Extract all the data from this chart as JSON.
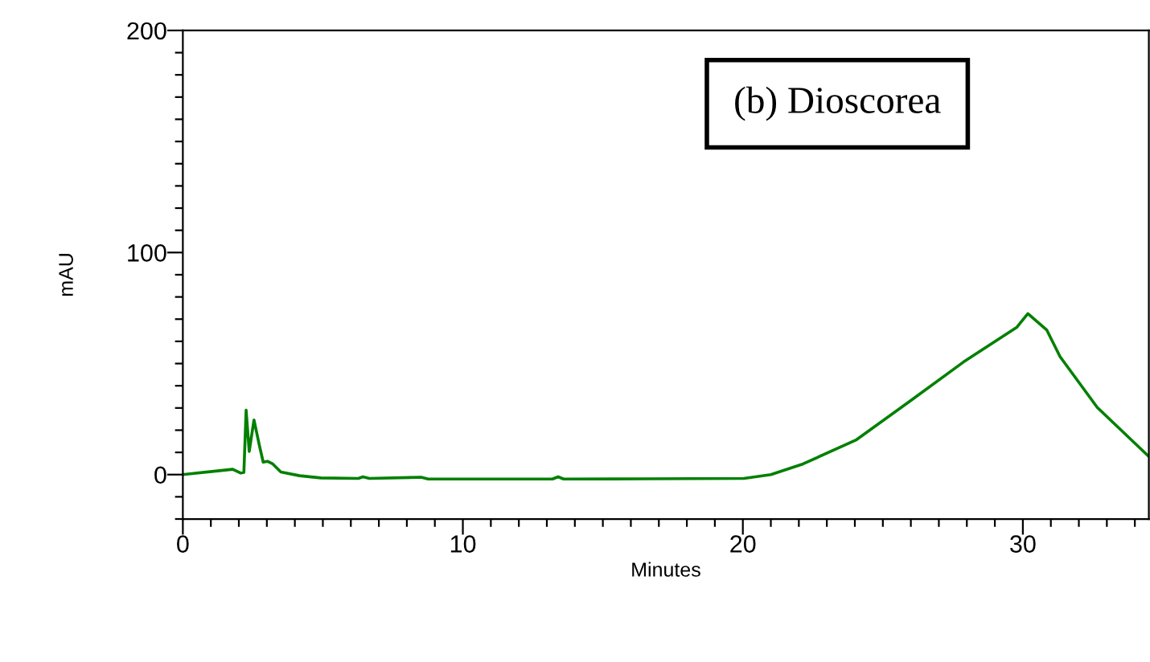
{
  "chart_data": {
    "type": "line",
    "xlabel": "Minutes",
    "ylabel": "mAU",
    "annotations": [
      "(b) Dioscorea"
    ],
    "series": [
      {
        "color": "#008000",
        "x": [
          0,
          1.78,
          2.07,
          2.18,
          2.26,
          2.37,
          2.54,
          2.73,
          2.87,
          3.02,
          3.21,
          3.5,
          4.17,
          4.93,
          6.27,
          6.43,
          6.66,
          8.51,
          8.76,
          13.2,
          13.4,
          13.6,
          16.4,
          20.04,
          21,
          22.15,
          24.06,
          25.97,
          27.88,
          29.79,
          30.18,
          30.85,
          31.33,
          32.66,
          34.47
        ],
        "values": [
          0,
          2.4,
          0.7,
          1,
          29,
          10.4,
          24.6,
          13.3,
          5.6,
          6,
          4.8,
          1.2,
          -0.5,
          -1.5,
          -1.7,
          -1,
          -1.7,
          -1.2,
          -2,
          -2,
          -1,
          -2,
          -1.9,
          -1.7,
          0,
          4.8,
          15.7,
          33.1,
          50.7,
          66.4,
          72.5,
          65.2,
          53.1,
          30.2,
          8.5
        ]
      }
    ],
    "xlim": [
      0,
      34.5
    ],
    "ylim": [
      -20,
      200
    ],
    "xticks": [
      0,
      {
        "value": 1,
        "label": null
      },
      {
        "value": 2,
        "label": null
      },
      {
        "value": 3,
        "label": null
      },
      {
        "value": 4,
        "label": null
      },
      {
        "value": 5,
        "label": null
      },
      {
        "value": 6,
        "label": null
      },
      {
        "value": 7,
        "label": null
      },
      {
        "value": 8,
        "label": null
      },
      {
        "value": 9,
        "label": null
      },
      10,
      {
        "value": 11,
        "label": null
      },
      {
        "value": 12,
        "label": null
      },
      {
        "value": 13,
        "label": null
      },
      {
        "value": 14,
        "label": null
      },
      {
        "value": 15,
        "label": null
      },
      {
        "value": 16,
        "label": null
      },
      {
        "value": 17,
        "label": null
      },
      {
        "value": 18,
        "label": null
      },
      {
        "value": 19,
        "label": null
      },
      20,
      {
        "value": 21,
        "label": null
      },
      {
        "value": 22,
        "label": null
      },
      {
        "value": 23,
        "label": null
      },
      {
        "value": 24,
        "label": null
      },
      {
        "value": 25,
        "label": null
      },
      {
        "value": 26,
        "label": null
      },
      {
        "value": 27,
        "label": null
      },
      {
        "value": 28,
        "label": null
      },
      {
        "value": 29,
        "label": null
      },
      30,
      {
        "value": 31,
        "label": null
      },
      {
        "value": 32,
        "label": null
      },
      {
        "value": 33,
        "label": null
      },
      {
        "value": 34,
        "label": null
      }
    ],
    "yticks": [
      {
        "value": -20,
        "label": null
      },
      {
        "value": -10,
        "label": null
      },
      0,
      {
        "value": 10,
        "label": null
      },
      {
        "value": 20,
        "label": null
      },
      {
        "value": 30,
        "label": null
      },
      {
        "value": 40,
        "label": null
      },
      {
        "value": 50,
        "label": null
      },
      {
        "value": 60,
        "label": null
      },
      {
        "value": 70,
        "label": null
      },
      {
        "value": 80,
        "label": null
      },
      {
        "value": 90,
        "label": null
      },
      100,
      {
        "value": 110,
        "label": null
      },
      {
        "value": 120,
        "label": null
      },
      {
        "value": 130,
        "label": null
      },
      {
        "value": 140,
        "label": null
      },
      {
        "value": 150,
        "label": null
      },
      {
        "value": 160,
        "label": null
      },
      {
        "value": 170,
        "label": null
      },
      {
        "value": 180,
        "label": null
      },
      {
        "value": 190,
        "label": null
      },
      200
    ],
    "grid": false,
    "legend": false,
    "line_style": "solid",
    "marker": "none"
  }
}
